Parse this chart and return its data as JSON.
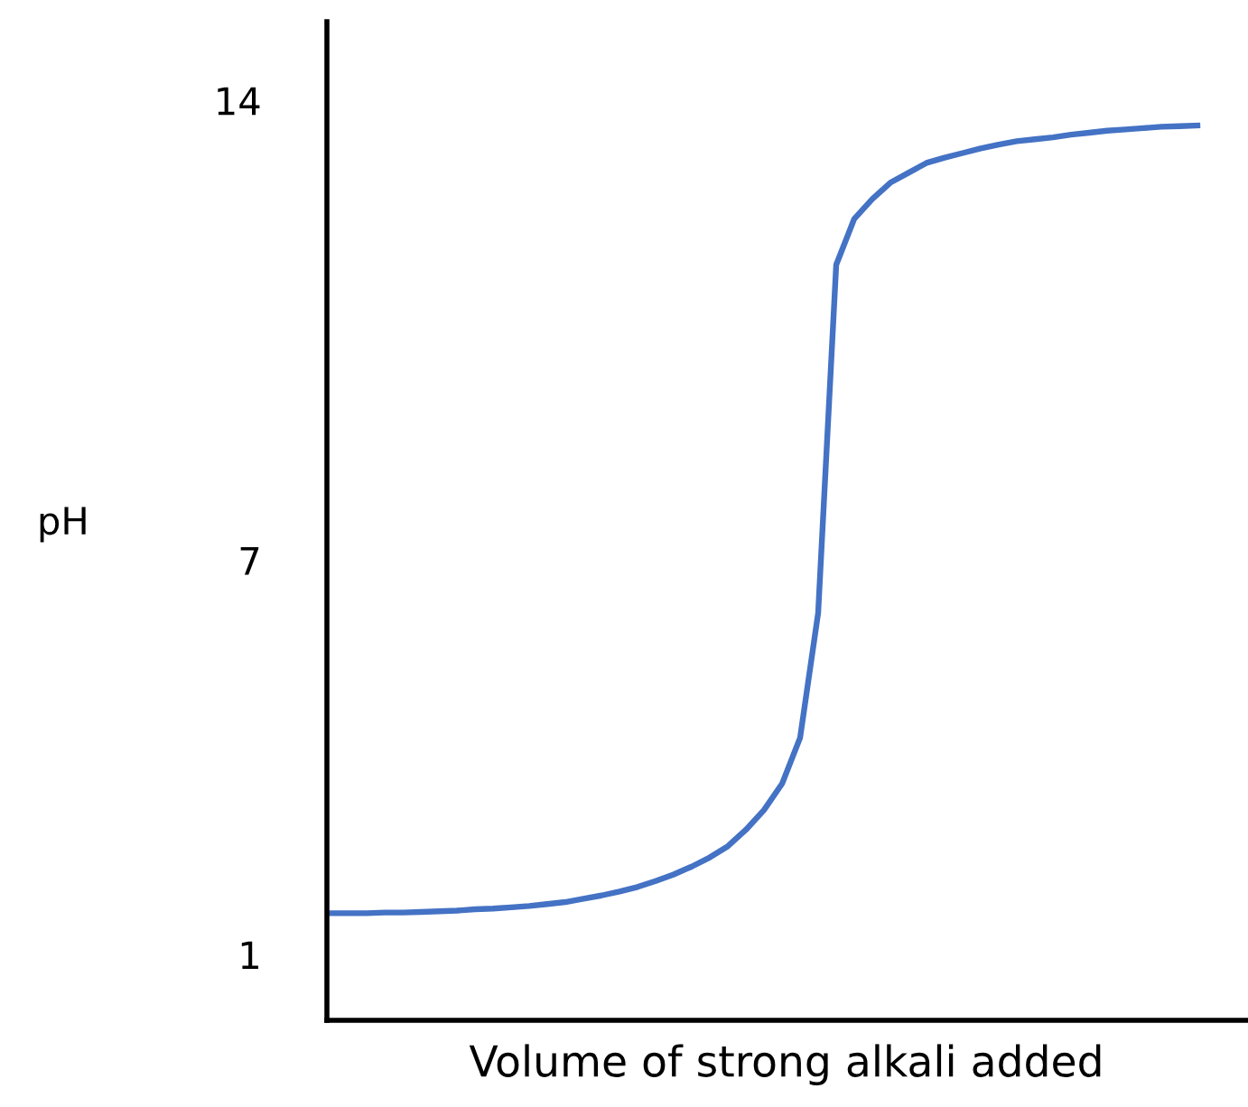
{
  "chart_data": {
    "type": "line",
    "xlabel": "Volume of strong alkali added",
    "ylabel": "pH",
    "categories": [
      null,
      null,
      null,
      null,
      null,
      null,
      null,
      null,
      null,
      null,
      null,
      null,
      null,
      null,
      null,
      null,
      null,
      null,
      null,
      null,
      null,
      null,
      null,
      null,
      null,
      null,
      null,
      null,
      null,
      null,
      null,
      null,
      null,
      null,
      null,
      null,
      null,
      null,
      null,
      null,
      null,
      null,
      null,
      null,
      null,
      null,
      null,
      null,
      null
    ],
    "series": [
      {
        "color": "#4472c4",
        "values": [
          1.63,
          1.63,
          1.63,
          1.64,
          1.64,
          1.65,
          1.66,
          1.67,
          1.69,
          1.7,
          1.72,
          1.74,
          1.77,
          1.8,
          1.85,
          1.9,
          1.96,
          2.03,
          2.12,
          2.22,
          2.34,
          2.48,
          2.65,
          2.9,
          3.2,
          3.6,
          4.3,
          6.2,
          11.5,
          12.2,
          12.5,
          12.75,
          12.9,
          13.05,
          13.13,
          13.2,
          13.27,
          13.33,
          13.38,
          13.41,
          13.44,
          13.48,
          13.51,
          13.54,
          13.56,
          13.58,
          13.6,
          13.61,
          13.62
        ]
      }
    ],
    "ylim": [
      0,
      15.2
    ],
    "yticks": [
      1,
      7,
      14
    ],
    "grid": false,
    "marker": "none",
    "line_style": "solid"
  }
}
